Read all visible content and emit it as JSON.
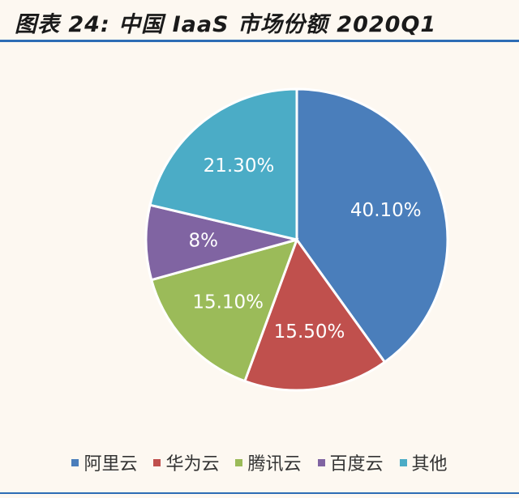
{
  "header": {
    "title": "图表 24:  中国 IaaS 市场份额 2020Q1"
  },
  "chart_data": {
    "type": "pie",
    "title": "图表 24:  中国 IaaS 市场份额 2020Q1",
    "categories": [
      "阿里云",
      "华为云",
      "腾讯云",
      "百度云",
      "其他"
    ],
    "values": [
      40.1,
      15.5,
      15.1,
      8,
      21.3
    ],
    "labels": [
      "40.10%",
      "15.50%",
      "15.10%",
      "8%",
      "21.30%"
    ],
    "colors": [
      "#4a7ebb",
      "#c0504d",
      "#9bbb59",
      "#8064a2",
      "#4bacc6"
    ],
    "legend": "bottom"
  }
}
